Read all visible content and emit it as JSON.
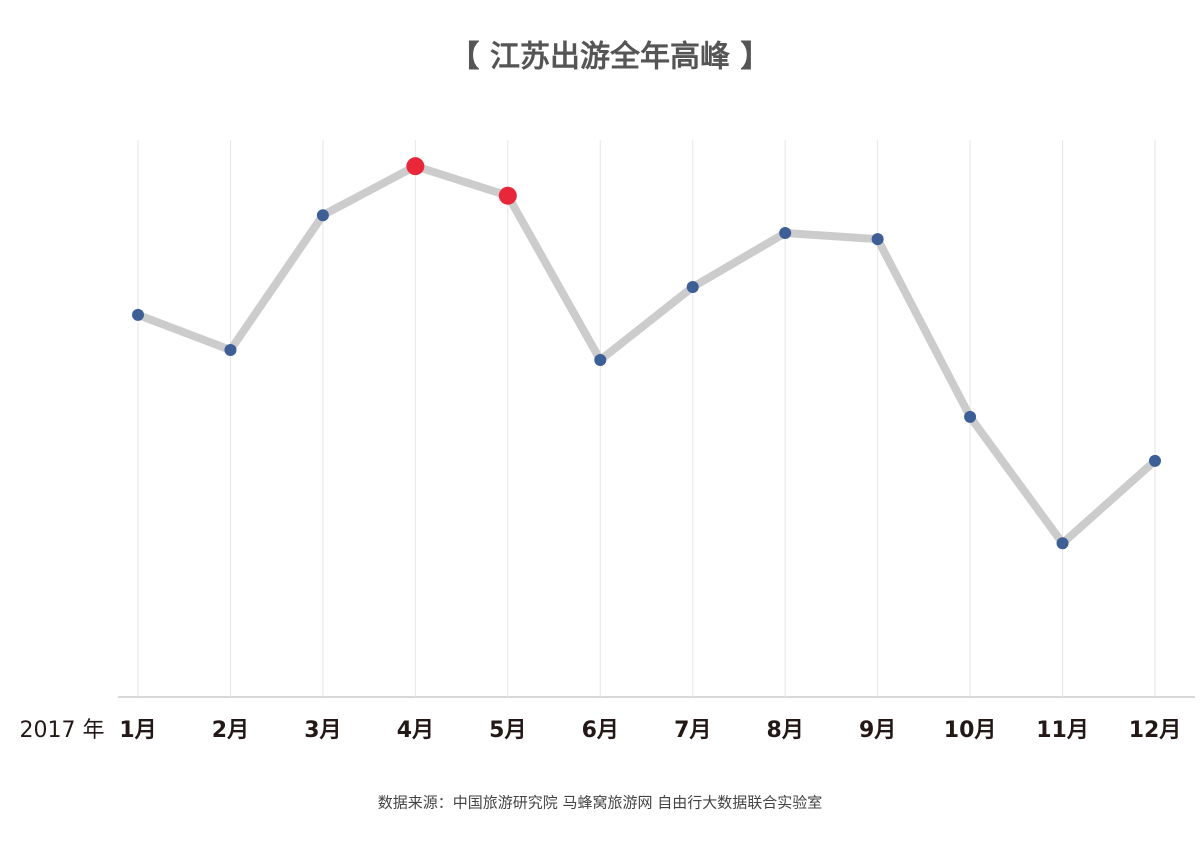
{
  "chart_data": {
    "type": "line",
    "title": "【 江苏出游全年高峰 】",
    "x_label": "2017 年",
    "source": "数据来源：中国旅游研究院 马蜂窝旅游网 自由行大数据联合实验室",
    "categories": [
      "1月",
      "2月",
      "3月",
      "4月",
      "5月",
      "6月",
      "7月",
      "8月",
      "9月",
      "10月",
      "11月",
      "12月"
    ],
    "series": [
      {
        "color": "#cccccc",
        "values": [
          68.6,
          62.3,
          86.5,
          95.3,
          90,
          60.5,
          73.6,
          83.3,
          82.2,
          50.3,
          27.6,
          42.4
        ],
        "point_colors": [
          "#3d5f96",
          "#3d5f96",
          "#3d5f96",
          "#e8283a",
          "#e8283a",
          "#3d5f96",
          "#3d5f96",
          "#3d5f96",
          "#3d5f96",
          "#3d5f96",
          "#3d5f96",
          "#3d5f96"
        ]
      }
    ],
    "ylim": [
      0,
      100
    ],
    "grid": true
  }
}
